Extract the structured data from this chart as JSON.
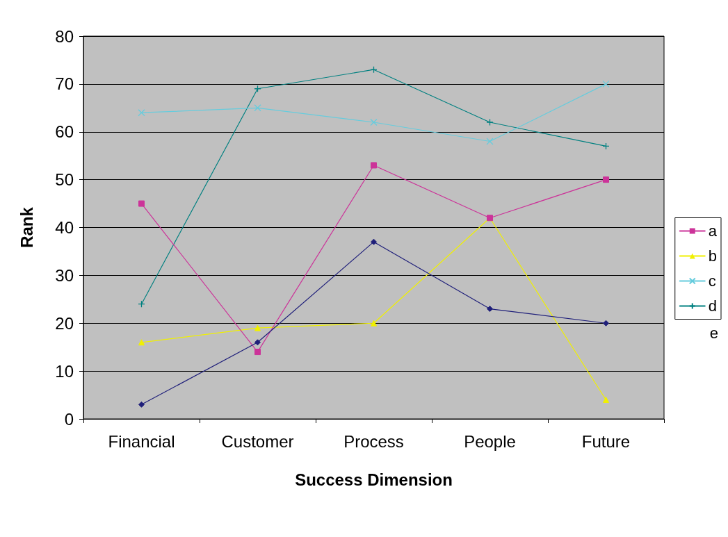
{
  "chart_data": {
    "type": "line",
    "xlabel": "Success Dimension",
    "ylabel": "Rank",
    "categories": [
      "Financial",
      "Customer",
      "Process",
      "People",
      "Future"
    ],
    "ylim": [
      0,
      80
    ],
    "yticks": [
      0,
      10,
      20,
      30,
      40,
      50,
      60,
      70,
      80
    ],
    "grid": "y",
    "legend": "right",
    "annotations": [
      "e"
    ],
    "series": [
      {
        "color": "#1f1f7a",
        "marker": "diamond",
        "values": [
          3,
          16,
          37,
          23,
          20
        ]
      },
      {
        "name": "a",
        "color": "#cc3399",
        "marker": "square",
        "values": [
          45,
          14,
          53,
          42,
          50
        ]
      },
      {
        "name": "b",
        "color": "#f0f000",
        "marker": "triangle",
        "values": [
          16,
          19,
          20,
          42,
          4
        ]
      },
      {
        "name": "c",
        "color": "#66ccdd",
        "marker": "cross",
        "values": [
          64,
          65,
          62,
          58,
          70
        ]
      },
      {
        "name": "d",
        "color": "#008080",
        "marker": "plus",
        "values": [
          24,
          69,
          73,
          62,
          57
        ]
      }
    ]
  }
}
